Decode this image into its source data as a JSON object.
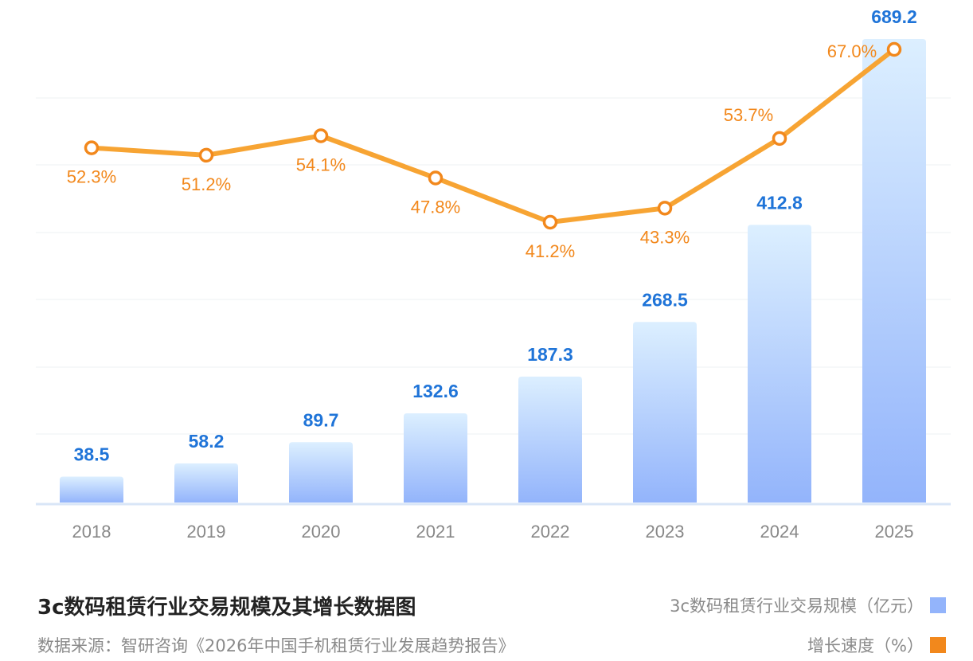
{
  "chart_data": {
    "type": "bar+line",
    "categories": [
      "2018",
      "2019",
      "2020",
      "2021",
      "2022",
      "2023",
      "2024",
      "2025"
    ],
    "series": [
      {
        "name": "3c数码租赁行业交易规模（亿元）",
        "type": "bar",
        "values": [
          38.5,
          58.2,
          89.7,
          132.6,
          187.3,
          268.5,
          412.8,
          689.2
        ],
        "labels": [
          "38.5",
          "58.2",
          "89.7",
          "132.6",
          "187.3",
          "268.5",
          "412.8",
          "689.2"
        ]
      },
      {
        "name": "增长速度（%）",
        "type": "line",
        "values": [
          52.3,
          51.2,
          54.1,
          47.8,
          41.2,
          43.3,
          53.7,
          67.0
        ],
        "labels": [
          "52.3%",
          "51.2%",
          "54.1%",
          "47.8%",
          "41.2%",
          "43.3%",
          "53.7%",
          "67.0%"
        ]
      }
    ],
    "title": "3c数码租赁行业交易规模及其增长数据图",
    "source": "数据来源：智研咨询《2026年中国手机租赁行业发展趋势报告》",
    "bar_ylim": [
      0,
      689.2
    ],
    "line_ylim": [
      41.2,
      67.0
    ],
    "grid": true,
    "legend_position": "bottom-right",
    "colors": {
      "bar_top": "#dcefff",
      "bar_bottom": "#93b4fb",
      "bar_label": "#1f74d8",
      "line": "#f7a433",
      "line_label": "#f2881c",
      "axis_label": "#888888",
      "grid": "#eef0f3",
      "baseline": "#d9e6f7"
    }
  }
}
